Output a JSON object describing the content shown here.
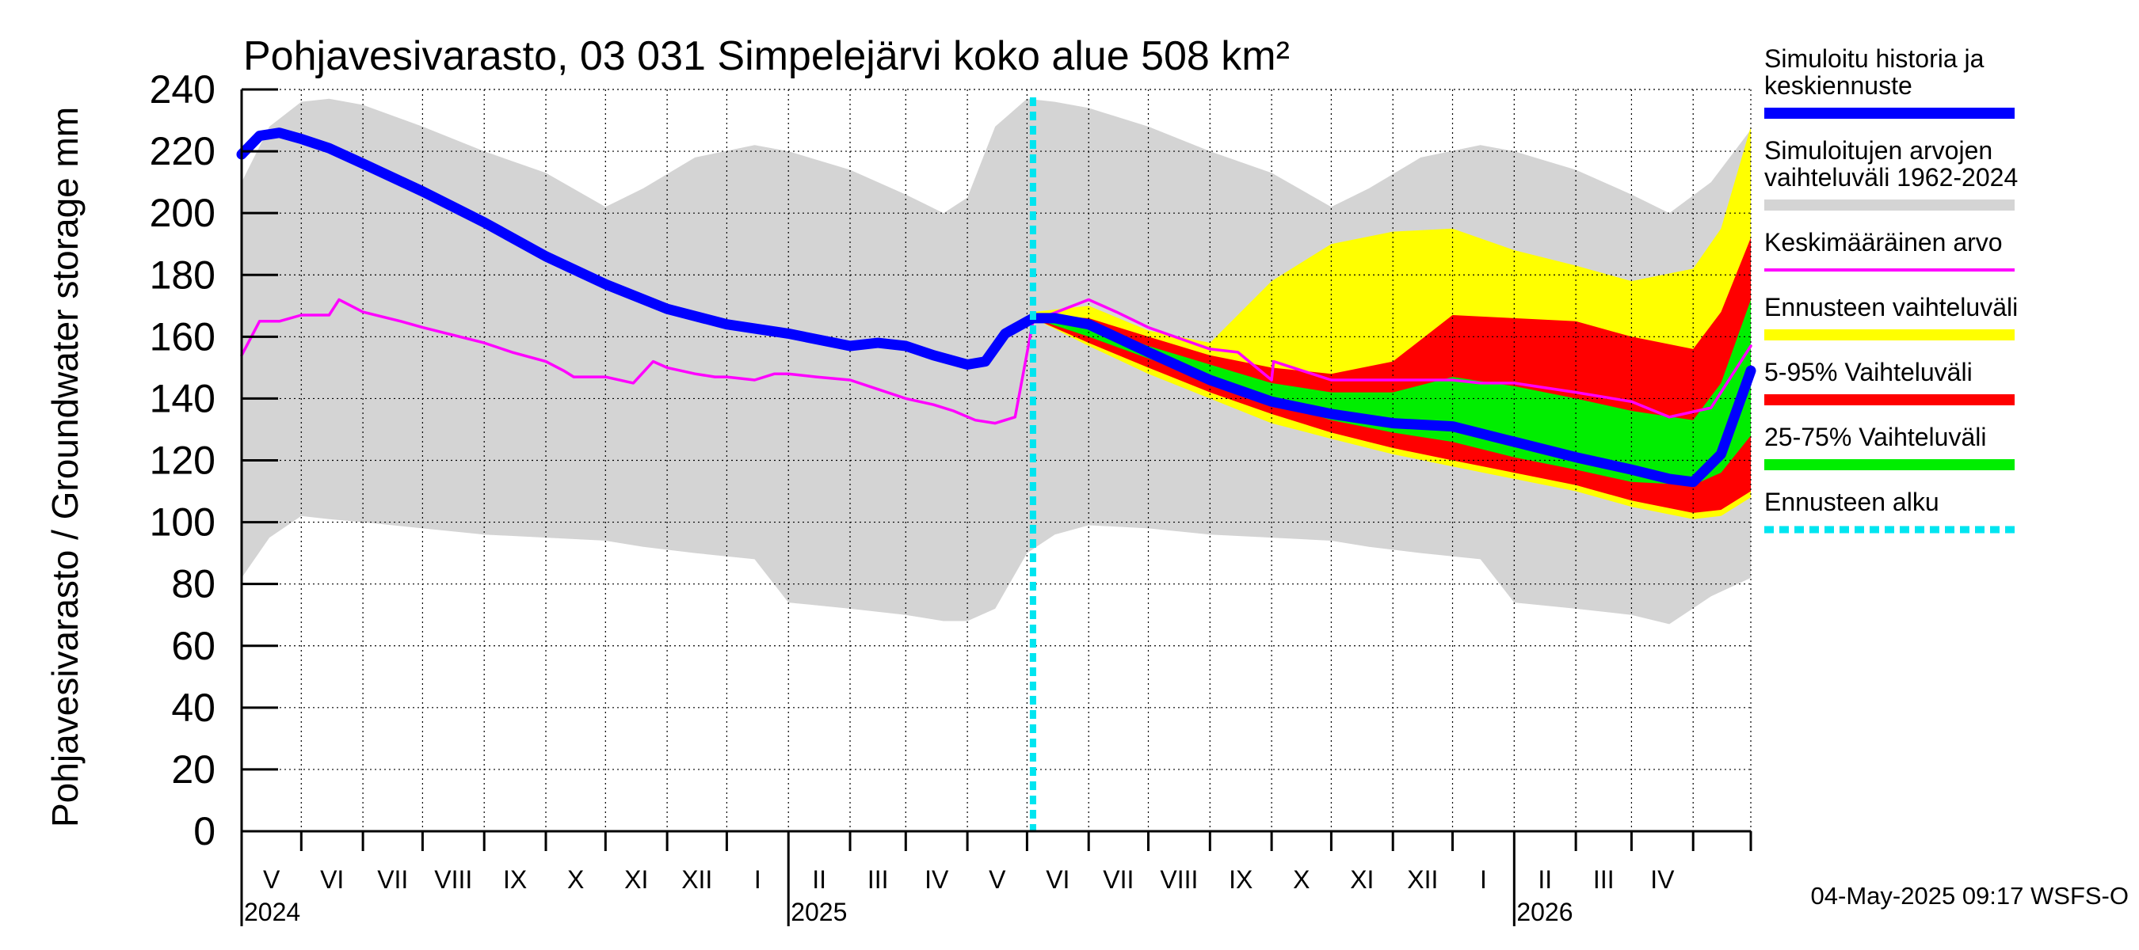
{
  "chart_data": {
    "type": "area",
    "title": "Pohjavesivarasto, 03 031 Simpelejärvi koko alue 508 km²",
    "ylabel": "Pohjavesivarasto / Groundwater storage   mm",
    "ylim": [
      0,
      240
    ],
    "yticks": [
      "0",
      "20",
      "40",
      "60",
      "80",
      "100",
      "120",
      "140",
      "160",
      "180",
      "200",
      "220",
      "240"
    ],
    "month_labels": [
      "V",
      "VI",
      "VII",
      "VIII",
      "IX",
      "X",
      "XI",
      "XII",
      "I",
      "II",
      "III",
      "IV",
      "V",
      "VI",
      "VII",
      "VIII",
      "IX",
      "X",
      "XI",
      "XII",
      "I",
      "II",
      "III",
      "IV"
    ],
    "year_labels": [
      "2024",
      "2025",
      "2026"
    ],
    "x_start": "2024-04-01",
    "x_end": "2026-04-30",
    "forecast_start": "2025-05-04",
    "grid": true,
    "legend_position": "right",
    "series": [
      {
        "name": "Simuloitujen arvojen vaihteluväli 1962-2024",
        "kind": "band",
        "color": "#d4d4d4",
        "x": [
          "2024-04-01",
          "2024-04-15",
          "2024-05-01",
          "2024-05-15",
          "2024-06-01",
          "2024-07-01",
          "2024-08-01",
          "2024-09-01",
          "2024-10-01",
          "2024-10-20",
          "2024-11-15",
          "2024-12-15",
          "2025-01-01",
          "2025-02-01",
          "2025-03-01",
          "2025-03-20",
          "2025-04-01",
          "2025-04-15",
          "2025-05-01",
          "2025-05-15",
          "2025-06-01",
          "2025-07-01",
          "2025-08-01",
          "2025-09-01",
          "2025-10-01",
          "2025-10-20",
          "2025-11-15",
          "2025-12-15",
          "2026-01-01",
          "2026-02-01",
          "2026-03-01",
          "2026-03-20",
          "2026-04-10",
          "2026-04-30"
        ],
        "low": [
          82,
          95,
          102,
          101,
          100,
          98,
          96,
          95,
          94,
          92,
          90,
          88,
          74,
          72,
          70,
          68,
          68,
          72,
          90,
          96,
          99,
          98,
          96,
          95,
          94,
          92,
          90,
          88,
          74,
          72,
          70,
          67,
          76,
          82
        ],
        "high": [
          210,
          228,
          236,
          237,
          235,
          228,
          220,
          213,
          202,
          208,
          218,
          222,
          220,
          214,
          206,
          200,
          205,
          228,
          237,
          236,
          234,
          228,
          220,
          213,
          202,
          208,
          218,
          222,
          220,
          214,
          206,
          200,
          210,
          227
        ]
      },
      {
        "name": "Ennusteen vaihteluväli",
        "kind": "band",
        "color": "#ffff00",
        "x": [
          "2025-05-04",
          "2025-06-01",
          "2025-07-01",
          "2025-08-01",
          "2025-09-01",
          "2025-10-01",
          "2025-11-01",
          "2025-12-01",
          "2026-01-01",
          "2026-02-01",
          "2026-03-01",
          "2026-04-01",
          "2026-04-15",
          "2026-04-30"
        ],
        "low": [
          166,
          157,
          148,
          140,
          132,
          127,
          122,
          118,
          114,
          110,
          105,
          101,
          102,
          108
        ],
        "high": [
          168,
          170,
          162,
          158,
          178,
          190,
          194,
          195,
          188,
          183,
          178,
          182,
          195,
          228
        ]
      },
      {
        "name": "5-95% Vaihteluväli",
        "kind": "band",
        "color": "#ff0000",
        "x": [
          "2025-05-04",
          "2025-06-01",
          "2025-07-01",
          "2025-08-01",
          "2025-09-01",
          "2025-10-01",
          "2025-11-01",
          "2025-12-01",
          "2026-01-01",
          "2026-02-01",
          "2026-03-01",
          "2026-04-01",
          "2026-04-15",
          "2026-04-30"
        ],
        "low": [
          166,
          158,
          150,
          142,
          135,
          129,
          124,
          120,
          116,
          112,
          107,
          103,
          104,
          110
        ],
        "high": [
          167,
          166,
          160,
          154,
          150,
          148,
          152,
          167,
          166,
          165,
          160,
          156,
          168,
          192
        ]
      },
      {
        "name": "25-75% Vaihteluväli",
        "kind": "band",
        "color": "#00ee00",
        "x": [
          "2025-05-04",
          "2025-06-01",
          "2025-07-01",
          "2025-08-01",
          "2025-09-01",
          "2025-10-01",
          "2025-11-01",
          "2025-12-01",
          "2026-01-01",
          "2026-02-01",
          "2026-03-01",
          "2026-04-01",
          "2026-04-15",
          "2026-04-30"
        ],
        "low": [
          166,
          160,
          153,
          146,
          139,
          133,
          129,
          126,
          121,
          117,
          113,
          112,
          116,
          128
        ],
        "high": [
          167,
          164,
          157,
          151,
          145,
          142,
          142,
          147,
          144,
          140,
          136,
          133,
          145,
          172
        ]
      },
      {
        "name": "Keskimääräinen arvo",
        "kind": "line",
        "color": "#ff00ff",
        "x": [
          "2024-04-01",
          "2024-04-10",
          "2024-04-20",
          "2024-05-01",
          "2024-05-15",
          "2024-05-20",
          "2024-06-01",
          "2024-06-20",
          "2024-07-01",
          "2024-08-01",
          "2024-08-15",
          "2024-09-01",
          "2024-09-10",
          "2024-09-15",
          "2024-10-01",
          "2024-10-15",
          "2024-10-25",
          "2024-11-01",
          "2024-11-15",
          "2024-11-25",
          "2024-12-01",
          "2024-12-15",
          "2024-12-25",
          "2025-01-01",
          "2025-01-15",
          "2025-02-01",
          "2025-02-15",
          "2025-03-01",
          "2025-03-15",
          "2025-03-25",
          "2025-04-05",
          "2025-04-15",
          "2025-04-25",
          "2025-05-04",
          "2025-06-01",
          "2025-06-15",
          "2025-07-01",
          "2025-08-01",
          "2025-08-15",
          "2025-09-01",
          "2025-09-02",
          "2025-10-01",
          "2025-10-15",
          "2025-11-01",
          "2025-12-01",
          "2025-12-15",
          "2026-01-01",
          "2026-02-01",
          "2026-03-01",
          "2026-03-20",
          "2026-04-10",
          "2026-04-30"
        ],
        "values": [
          154,
          165,
          165,
          167,
          167,
          172,
          168,
          165,
          163,
          158,
          155,
          152,
          149,
          147,
          147,
          145,
          152,
          150,
          148,
          147,
          147,
          146,
          148,
          148,
          147,
          146,
          143,
          140,
          138,
          136,
          133,
          132,
          134,
          165,
          172,
          168,
          163,
          156,
          155,
          146,
          152,
          146,
          146,
          146,
          146,
          145,
          145,
          142,
          139,
          134,
          137,
          157
        ]
      },
      {
        "name": "Simuloitu historia ja keskiennuste",
        "kind": "line",
        "color": "#0000ff",
        "x": [
          "2024-04-01",
          "2024-04-10",
          "2024-04-20",
          "2024-05-01",
          "2024-05-15",
          "2024-06-01",
          "2024-07-01",
          "2024-08-01",
          "2024-09-01",
          "2024-10-01",
          "2024-11-01",
          "2024-12-01",
          "2025-01-01",
          "2025-02-01",
          "2025-02-15",
          "2025-03-01",
          "2025-03-15",
          "2025-04-01",
          "2025-04-10",
          "2025-04-20",
          "2025-05-04",
          "2025-05-15",
          "2025-06-01",
          "2025-07-01",
          "2025-08-01",
          "2025-09-01",
          "2025-10-01",
          "2025-11-01",
          "2025-12-01",
          "2026-01-01",
          "2026-02-01",
          "2026-03-01",
          "2026-03-20",
          "2026-04-01",
          "2026-04-15",
          "2026-04-30"
        ],
        "values": [
          219,
          225,
          226,
          224,
          221,
          216,
          207,
          197,
          186,
          177,
          169,
          164,
          161,
          157,
          158,
          157,
          154,
          151,
          152,
          161,
          166,
          166,
          164,
          155,
          146,
          139,
          135,
          132,
          131,
          126,
          121,
          117,
          114,
          113,
          122,
          149
        ]
      },
      {
        "name": "Ennusteen alku",
        "kind": "vline",
        "color": "#00e5f0"
      }
    ]
  },
  "legend": [
    {
      "label": "Simuloitu historia ja\nkeskiennuste",
      "color": "#0000ff",
      "style": "thick"
    },
    {
      "label": "Simuloitujen arvojen\nvaihteluväli 1962-2024",
      "color": "#d4d4d4",
      "style": "thick"
    },
    {
      "label": "Keskimääräinen arvo",
      "color": "#ff00ff",
      "style": "thin"
    },
    {
      "label": "Ennusteen vaihteluväli",
      "color": "#ffff00",
      "style": "thick"
    },
    {
      "label": "5-95% Vaihteluväli",
      "color": "#ff0000",
      "style": "thick"
    },
    {
      "label": "25-75% Vaihteluväli",
      "color": "#00ee00",
      "style": "thick"
    },
    {
      "label": "Ennusteen alku",
      "color": "#00e5f0",
      "style": "dotted"
    }
  ],
  "footer": "04-May-2025 09:17 WSFS-O"
}
